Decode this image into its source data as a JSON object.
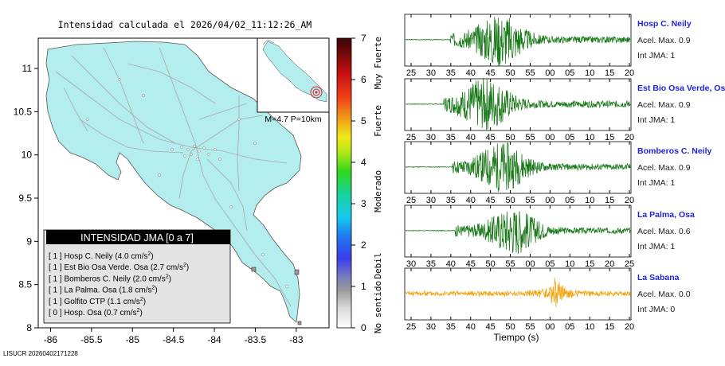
{
  "map": {
    "title": "Intensidad calculada el 2026/04/02_11:12:26_AM",
    "inset_label": "M=4.7 P=10km",
    "footer": "LISUCR 20260402171228",
    "legend": {
      "title": "INTENSIDAD JMA [0 a 7]",
      "entries": [
        {
          "int": "[ 1 ]",
          "name": "Hosp C. Neily",
          "val": "4.0 cm/s",
          "sup": "2"
        },
        {
          "int": "[ 1 ]",
          "name": "Est Bio Osa Verde. Osa",
          "val": "2.7 cm/s",
          "sup": "2"
        },
        {
          "int": "[ 1 ]",
          "name": "Bomberos C. Neily",
          "val": "2.0 cm/s",
          "sup": "2"
        },
        {
          "int": "[ 1 ]",
          "name": "La Palma. Osa",
          "val": "1.8 cm/s",
          "sup": "2"
        },
        {
          "int": "[ 1 ]",
          "name": "Golfito CTP",
          "val": "1.1 cm/s",
          "sup": "2"
        },
        {
          "int": "[ 0 ]",
          "name": "Hosp. Osa",
          "val": "0.7 cm/s",
          "sup": "2"
        }
      ]
    },
    "colorbar": {
      "ticks": [
        "0",
        "1",
        "2",
        "3",
        "4",
        "5",
        "6",
        "7"
      ],
      "labels": [
        "No sentido",
        "Debil",
        "Moderado",
        "Fuerte",
        "Muy Fuerte"
      ]
    }
  },
  "colors": {
    "land": "#b3eded",
    "roads": "#a8a8a8",
    "trace_green": "#1a7a1a",
    "trace_orange": "#f2a20c",
    "station_name": "#1f1fe0",
    "legend_header": "#000000"
  },
  "chart_data": [
    {
      "type": "map",
      "x_ticks": [
        "-86",
        "-85.5",
        "-85",
        "-84.5",
        "-84",
        "-83.5",
        "-83"
      ],
      "y_ticks": [
        "8",
        "8.5",
        "9",
        "9.5",
        "10",
        "10.5",
        "11"
      ],
      "xlim": [
        -86.15,
        -82.6
      ],
      "ylim": [
        8.0,
        11.35
      ]
    },
    {
      "type": "line",
      "x_label": "Tiempo (s)",
      "traces": [
        {
          "station": "Hosp C. Neily",
          "acel": "Acel. Max. 0.9",
          "int": "Int JMA: 1",
          "ticks": [
            "25",
            "30",
            "35",
            "40",
            "45",
            "50",
            "55",
            "00",
            "05",
            "10",
            "15",
            "20"
          ],
          "onset": 0.2,
          "peak": 0.42,
          "amp": 1.0,
          "color": "green",
          "seed": 3
        },
        {
          "station": "Est Bio Osa Verde, Osa",
          "acel": "Acel. Max. 0.9",
          "int": "Int JMA: 1",
          "ticks": [
            "25",
            "30",
            "35",
            "40",
            "45",
            "50",
            "55",
            "00",
            "05",
            "10",
            "15",
            "20"
          ],
          "onset": 0.17,
          "peak": 0.36,
          "amp": 1.0,
          "color": "green",
          "seed": 7
        },
        {
          "station": "Bomberos C. Neily",
          "acel": "Acel. Max. 0.9",
          "int": "Int JMA: 1",
          "ticks": [
            "25",
            "30",
            "35",
            "40",
            "45",
            "50",
            "55",
            "00",
            "05",
            "10",
            "15",
            "20"
          ],
          "onset": 0.21,
          "peak": 0.43,
          "amp": 0.95,
          "color": "green",
          "seed": 11
        },
        {
          "station": "La Palma, Osa",
          "acel": "Acel. Max. 0.6",
          "int": "Int JMA: 1",
          "ticks": [
            "30",
            "35",
            "40",
            "45",
            "50",
            "55",
            "00",
            "05",
            "10",
            "15",
            "20",
            "25"
          ],
          "onset": 0.22,
          "peak": 0.48,
          "amp": 0.9,
          "color": "green",
          "seed": 17
        },
        {
          "station": "La Sabana",
          "acel": "Acel. Max. 0.0",
          "int": "Int JMA: 0",
          "ticks": [
            "25",
            "30",
            "35",
            "40",
            "45",
            "50",
            "55",
            "00",
            "05",
            "10",
            "15",
            "20"
          ],
          "onset": 0.0,
          "peak": 0.67,
          "amp": 0.55,
          "color": "orange",
          "seed": 23
        }
      ]
    }
  ]
}
